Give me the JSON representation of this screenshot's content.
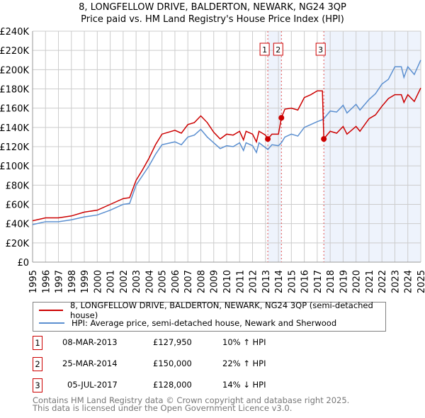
{
  "chart_data": {
    "type": "line",
    "title": "8, LONGFELLOW DRIVE, BALDERTON, NEWARK, NG24 3QP",
    "subtitle": "Price paid vs. HM Land Registry's House Price Index (HPI)",
    "xlim": [
      1995,
      2025
    ],
    "ylim": [
      0,
      240000
    ],
    "y_ticks": [
      "£0",
      "£20K",
      "£40K",
      "£60K",
      "£80K",
      "£100K",
      "£120K",
      "£140K",
      "£160K",
      "£180K",
      "£200K",
      "£220K",
      "£240K"
    ],
    "x_ticks": [
      "1995",
      "1996",
      "1997",
      "1998",
      "1999",
      "2000",
      "2001",
      "2002",
      "2003",
      "2004",
      "2005",
      "2006",
      "2007",
      "2008",
      "2009",
      "2010",
      "2011",
      "2012",
      "2013",
      "2014",
      "2015",
      "2016",
      "2017",
      "2018",
      "2019",
      "2020",
      "2021",
      "2022",
      "2023",
      "2024",
      "2025"
    ],
    "x": [
      1995,
      1996,
      1997,
      1998,
      1999,
      2000,
      2001,
      2002,
      2002.5,
      2003,
      2003.5,
      2004,
      2004.5,
      2005,
      2006,
      2006.5,
      2007,
      2007.5,
      2008,
      2008.5,
      2009,
      2009.5,
      2010,
      2010.5,
      2011,
      2011.3,
      2011.5,
      2012,
      2012.3,
      2012.5,
      2013,
      2013.18,
      2013.5,
      2014,
      2014.23,
      2014.5,
      2015,
      2015.5,
      2016,
      2016.5,
      2017,
      2017.4,
      2017.51,
      2018,
      2018.5,
      2019,
      2019.3,
      2020,
      2020.3,
      2021,
      2021.5,
      2022,
      2022.5,
      2023,
      2023.5,
      2023.7,
      2024,
      2024.5,
      2025
    ],
    "series": [
      {
        "name": "8, LONGFELLOW DRIVE, BALDERTON, NEWARK, NG24 3QP (semi-detached house)",
        "color": "#cc0000",
        "values": [
          43,
          46,
          46,
          48,
          52,
          54,
          60,
          66,
          67,
          85,
          96,
          108,
          122,
          133,
          137,
          134,
          143,
          145,
          152,
          145,
          135,
          128,
          133,
          132,
          136,
          127,
          136,
          133,
          125,
          136,
          132,
          128,
          133,
          133,
          150,
          159,
          160,
          158,
          171,
          174,
          178,
          178,
          128,
          136,
          134,
          141,
          133,
          141,
          136,
          149,
          153,
          162,
          170,
          174,
          174,
          166,
          174,
          167,
          181
        ]
      },
      {
        "name": "HPI: Average price, semi-detached house, Newark and Sherwood",
        "color": "#5b8fd0",
        "values": [
          39,
          42,
          42,
          44,
          47,
          49,
          54,
          60,
          61,
          80,
          90,
          100,
          112,
          122,
          125,
          122,
          130,
          132,
          138,
          130,
          124,
          118,
          121,
          120,
          124,
          116,
          124,
          121,
          114,
          124,
          119,
          117,
          122,
          121,
          124,
          130,
          133,
          131,
          140,
          143,
          146,
          148,
          149,
          157,
          156,
          163,
          155,
          164,
          158,
          169,
          175,
          185,
          190,
          203,
          203,
          192,
          203,
          195,
          210
        ]
      }
    ],
    "value_unit": "thousands GBP",
    "sales": [
      {
        "label": "1",
        "year": 2013.18,
        "value": 127.95,
        "date": "08-MAR-2013",
        "price": "£127,950",
        "hpi": "10% ↑ HPI"
      },
      {
        "label": "2",
        "year": 2014.23,
        "value": 150,
        "date": "25-MAR-2014",
        "price": "£150,000",
        "hpi": "22% ↑ HPI"
      },
      {
        "label": "3",
        "year": 2017.51,
        "value": 128,
        "date": "05-JUL-2017",
        "price": "£128,000",
        "hpi": "14% ↓ HPI"
      }
    ],
    "shaded": [
      [
        2013.18,
        2014.23
      ],
      [
        2017.51,
        2025
      ]
    ]
  },
  "footer": {
    "line1": "Contains HM Land Registry data © Crown copyright and database right 2025.",
    "line2": "This data is licensed under the Open Government Licence v3.0."
  }
}
